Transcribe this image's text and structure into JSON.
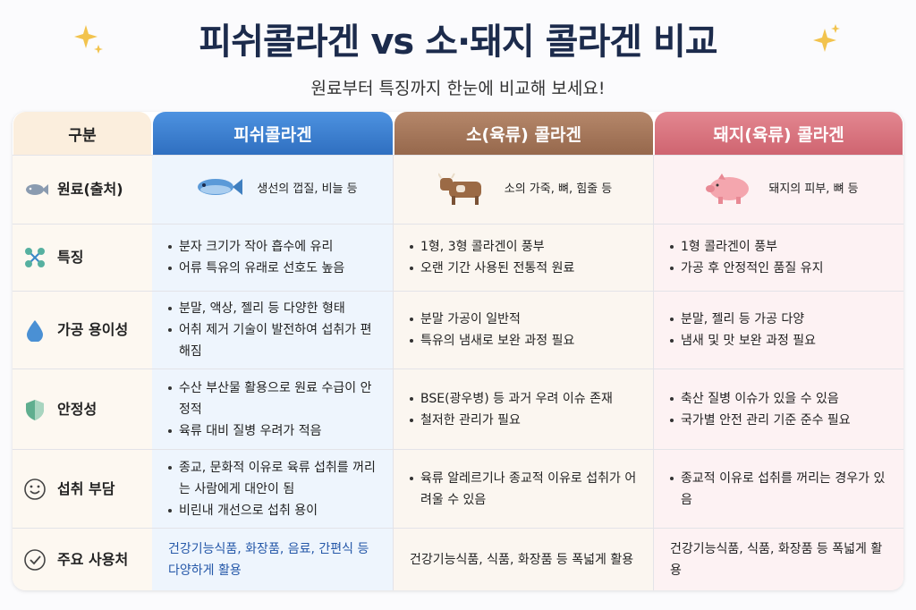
{
  "title": "피쉬콜라겐 vs 소·돼지 콜라겐 비교",
  "subtitle": "원료부터 특징까지 한눈에 비교해 보세요!",
  "table": {
    "headers": [
      "구분",
      "피쉬콜라겐",
      "소(육류) 콜라겐",
      "돼지(육류) 콜라겐"
    ],
    "rows": [
      {
        "label": "원료(출처)",
        "cells": [
          [
            "생선의 껍질, 비늘 등"
          ],
          [
            "소의 가죽, 뼈, 힘줄 등"
          ],
          [
            "돼지의 피부, 뼈 등"
          ]
        ]
      },
      {
        "label": "특징",
        "cells": [
          [
            "분자 크기가 작아 흡수에 유리",
            "어류 특유의 유래로 선호도 높음"
          ],
          [
            "1형, 3형 콜라겐이 풍부",
            "오랜 기간 사용된 전통적 원료"
          ],
          [
            "1형 콜라겐이 풍부",
            "가공 후 안정적인 품질 유지"
          ]
        ]
      },
      {
        "label": "가공 용이성",
        "cells": [
          [
            "분말, 액상, 젤리 등 다양한 형태",
            "어취 제거 기술이 발전하여 섭취가 편해짐"
          ],
          [
            "분말 가공이 일반적",
            "특유의 냄새로 보완 과정 필요"
          ],
          [
            "분말, 젤리 등 가공 다양",
            "냄새 및 맛 보완 과정 필요"
          ]
        ]
      },
      {
        "label": "안정성",
        "cells": [
          [
            "수산 부산물 활용으로 원료 수급이 안정적",
            "육류 대비 질병 우려가 적음"
          ],
          [
            "BSE(광우병) 등 과거 우려 이슈 존재",
            "철저한 관리가 필요"
          ],
          [
            "축산 질병 이슈가 있을 수 있음",
            "국가별 안전 관리 기준 준수 필요"
          ]
        ]
      },
      {
        "label": "섭취 부담",
        "cells": [
          [
            "종교, 문화적 이유로 육류 섭취를 꺼리는 사람에게 대안이 됨",
            "비린내 개선으로 섭취 용이"
          ],
          [
            "육류 알레르기나 종교적 이유로 섭취가 어려울 수 있음"
          ],
          [
            "종교적 이유로 섭취를 꺼리는 경우가 있음"
          ]
        ]
      },
      {
        "label": "주요 사용처",
        "cells": [
          [
            "건강기능식품, 화장품, 음료, 간편식 등 다양하게 활용"
          ],
          [
            "건강기능식품, 식품, 화장품 등 폭넓게 활용"
          ],
          [
            "건강기능식품, 식품, 화장품 등 폭넓게 활용"
          ]
        ]
      }
    ]
  }
}
